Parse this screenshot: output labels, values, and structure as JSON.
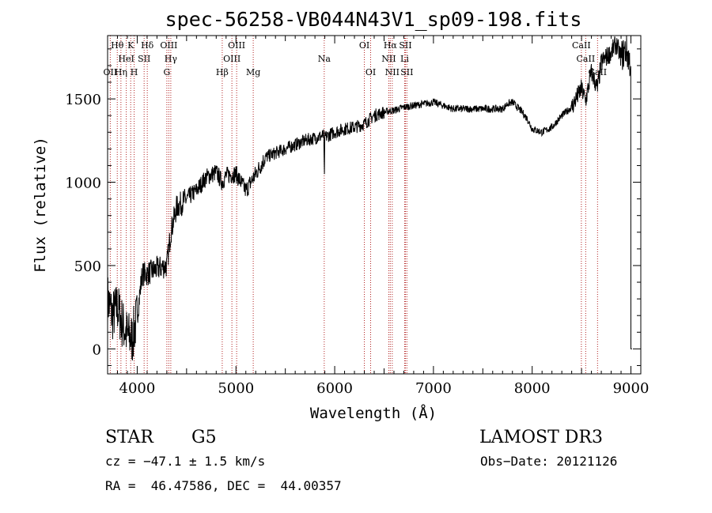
{
  "chart_data": {
    "type": "line",
    "title": "spec-56258-VB044N43V1_sp09-198.fits",
    "xlabel": "Wavelength (Å)",
    "ylabel": "Flux (relative)",
    "xlim": [
      3700,
      9100
    ],
    "ylim": [
      -150,
      1880
    ],
    "xticks": [
      4000,
      5000,
      6000,
      7000,
      8000,
      9000
    ],
    "yticks": [
      0,
      500,
      1000,
      1500
    ],
    "spectrum_anchor_points": {
      "x": [
        3700,
        3750,
        3800,
        3850,
        3900,
        3950,
        4000,
        4050,
        4100,
        4200,
        4300,
        4340,
        4400,
        4500,
        4600,
        4700,
        4800,
        4860,
        4900,
        5000,
        5100,
        5200,
        5300,
        5500,
        5700,
        5889,
        5895,
        5900,
        6000,
        6100,
        6200,
        6300,
        6400,
        6500,
        6563,
        6600,
        6700,
        6800,
        6900,
        7000,
        7200,
        7400,
        7600,
        7700,
        7750,
        7800,
        7900,
        7950,
        8000,
        8100,
        8200,
        8300,
        8400,
        8498,
        8542,
        8600,
        8662,
        8700,
        8800,
        8850,
        8900,
        8950,
        9000
      ],
      "y": [
        300,
        200,
        250,
        150,
        80,
        60,
        200,
        450,
        450,
        480,
        500,
        700,
        850,
        900,
        950,
        1030,
        1060,
        1000,
        1040,
        1050,
        950,
        1050,
        1150,
        1200,
        1250,
        1280,
        1020,
        1270,
        1300,
        1320,
        1330,
        1350,
        1400,
        1420,
        1430,
        1430,
        1450,
        1460,
        1470,
        1480,
        1440,
        1440,
        1440,
        1440,
        1470,
        1480,
        1420,
        1380,
        1320,
        1300,
        1330,
        1400,
        1450,
        1560,
        1490,
        1660,
        1560,
        1720,
        1780,
        1830,
        1750,
        1800,
        1700
      ]
    },
    "spectral_lines": [
      {
        "label": "OII",
        "wave": 3727,
        "row": 2
      },
      {
        "label": "Hθ",
        "wave": 3798,
        "row": 0
      },
      {
        "label": "Hη",
        "wave": 3835,
        "row": 2
      },
      {
        "label": "HeI",
        "wave": 3889,
        "row": 1
      },
      {
        "label": "K",
        "wave": 3934,
        "row": 0
      },
      {
        "label": "H",
        "wave": 3969,
        "row": 2
      },
      {
        "label": "SII",
        "wave": 4070,
        "row": 1
      },
      {
        "label": "Hδ",
        "wave": 4102,
        "row": 0
      },
      {
        "label": "G",
        "wave": 4300,
        "row": 2
      },
      {
        "label": "OIII",
        "wave": 4320,
        "row": 0
      },
      {
        "label": "Hγ",
        "wave": 4340,
        "row": 1
      },
      {
        "label": "Hβ",
        "wave": 4861,
        "row": 2
      },
      {
        "label": "OIII",
        "wave": 4959,
        "row": 1
      },
      {
        "label": "OIII",
        "wave": 5007,
        "row": 0
      },
      {
        "label": "Mg",
        "wave": 5175,
        "row": 2
      },
      {
        "label": "Na",
        "wave": 5894,
        "row": 1
      },
      {
        "label": "OI",
        "wave": 6300,
        "row": 0
      },
      {
        "label": "OI",
        "wave": 6364,
        "row": 2
      },
      {
        "label": "NII",
        "wave": 6548,
        "row": 1
      },
      {
        "label": "Hα",
        "wave": 6563,
        "row": 0
      },
      {
        "label": "NII",
        "wave": 6583,
        "row": 2
      },
      {
        "label": "SII",
        "wave": 6716,
        "row": 0
      },
      {
        "label": "Li",
        "wave": 6708,
        "row": 1
      },
      {
        "label": "SII",
        "wave": 6731,
        "row": 2
      },
      {
        "label": "CaII",
        "wave": 8498,
        "row": 0
      },
      {
        "label": "CaII",
        "wave": 8542,
        "row": 1
      },
      {
        "label": "CaII",
        "wave": 8662,
        "row": 2
      }
    ]
  },
  "info": {
    "object_type": "STAR",
    "subclass": "G5",
    "survey": "LAMOST DR3",
    "cz": "cz = −47.1 ± 1.5 km/s",
    "obs_date": "Obs−Date: 20121126",
    "coords": "RA =  46.47586, DEC =  44.00357"
  },
  "colors": {
    "axis": "#000000",
    "spectrum": "#000000",
    "line_marker": "#b22222",
    "background": "#ffffff"
  }
}
